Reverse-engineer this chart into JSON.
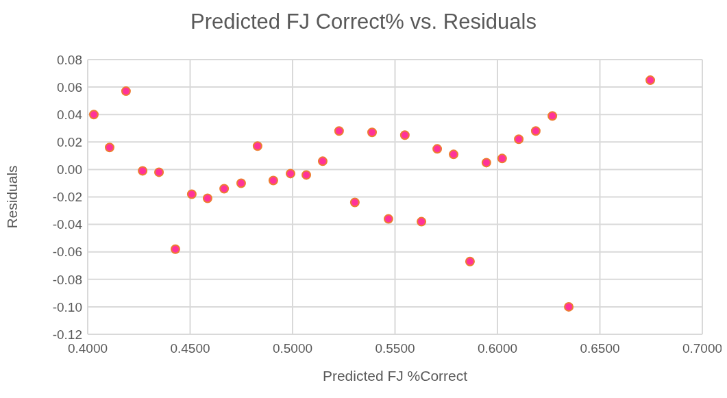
{
  "chart_data": {
    "type": "scatter",
    "title": "Predicted FJ Correct% vs. Residuals",
    "xlabel": "Predicted FJ %Correct",
    "ylabel": "Residuals",
    "x": [
      0.403,
      0.4107,
      0.4187,
      0.4268,
      0.4348,
      0.4428,
      0.4508,
      0.4585,
      0.4666,
      0.4749,
      0.4829,
      0.4906,
      0.499,
      0.5067,
      0.5147,
      0.5227,
      0.5304,
      0.5388,
      0.5468,
      0.5548,
      0.5629,
      0.5706,
      0.5786,
      0.5866,
      0.5946,
      0.6023,
      0.6104,
      0.6187,
      0.6268,
      0.6348,
      0.6746
    ],
    "values": [
      0.04,
      0.016,
      0.057,
      -0.001,
      -0.002,
      -0.058,
      -0.018,
      -0.021,
      -0.014,
      -0.01,
      0.017,
      -0.008,
      -0.003,
      -0.004,
      0.006,
      0.028,
      -0.024,
      0.027,
      -0.036,
      0.025,
      -0.038,
      0.015,
      0.011,
      -0.067,
      0.005,
      0.008,
      0.022,
      0.028,
      0.039,
      -0.1,
      0.065
    ],
    "color": "#ff3399",
    "marker": "circle",
    "grid": true,
    "xlim": [
      0.4,
      0.7
    ],
    "xticks": [
      {
        "value": 0.4,
        "label": "0.4000"
      },
      {
        "value": 0.45,
        "label": "0.4500"
      },
      {
        "value": 0.5,
        "label": "0.5000"
      },
      {
        "value": 0.55,
        "label": "0.5500"
      },
      {
        "value": 0.6,
        "label": "0.6000"
      },
      {
        "value": 0.65,
        "label": "0.6500"
      },
      {
        "value": 0.7,
        "label": "0.7000"
      }
    ],
    "ylim": [
      -0.12,
      0.08
    ],
    "yticks": [
      {
        "value": -0.12,
        "label": "-0.12"
      },
      {
        "value": -0.1,
        "label": "-0.10"
      },
      {
        "value": -0.08,
        "label": "-0.08"
      },
      {
        "value": -0.06,
        "label": "-0.06"
      },
      {
        "value": -0.04,
        "label": "-0.04"
      },
      {
        "value": -0.02,
        "label": "-0.02"
      },
      {
        "value": 0,
        "label": "0.00"
      },
      {
        "value": 0.02,
        "label": "0.02"
      },
      {
        "value": 0.04,
        "label": "0.04"
      },
      {
        "value": 0.06,
        "label": "0.06"
      },
      {
        "value": 0.08,
        "label": "0.08"
      }
    ]
  }
}
